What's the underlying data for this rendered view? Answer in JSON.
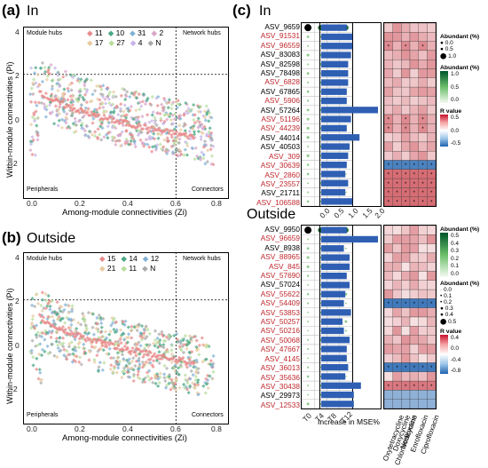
{
  "panel_a": {
    "label": "(a)",
    "title": "In",
    "ylabel": "Within-module connectivities (Pi)",
    "xlabel": "Among-module connectivities (Zi)",
    "corners": {
      "top_left": "Module hubs",
      "top_right": "Network hubs",
      "bottom_left": "Peripherals",
      "bottom_right": "Connectors"
    },
    "legend": [
      "11",
      "10",
      "31",
      "2",
      "17",
      "27",
      "4",
      "N"
    ],
    "xticks": [
      "0.0",
      "0.2",
      "0.4",
      "0.6",
      "0.8"
    ],
    "yticks": [
      "4",
      "2",
      "0",
      "-2"
    ]
  },
  "panel_b": {
    "label": "(b)",
    "title": "Outside",
    "ylabel": "Within-module connectivities (Pi)",
    "xlabel": "Among-module connectivities (Zi)",
    "corners": {
      "top_left": "Module hubs",
      "top_right": "Network hubs",
      "bottom_left": "Peripherals",
      "bottom_right": "Connectors"
    },
    "legend": [
      "15",
      "14",
      "12",
      "21",
      "11",
      "N"
    ],
    "xticks": [
      "0.0",
      "0.2",
      "0.4",
      "0.6",
      "0.8"
    ],
    "yticks": [
      "4",
      "2",
      "0",
      "-2"
    ]
  },
  "panel_c": {
    "label": "(c)",
    "title_in": "In",
    "title_out": "Outside",
    "timepoints": [
      "T0",
      "T4",
      "T8",
      "T12"
    ],
    "bar_axis_ticks": [
      "0.0",
      "0.5",
      "1.0",
      "1.5",
      "2.0"
    ],
    "bar_xlabel": "Increase in MSE%",
    "antibiotics": [
      "Oxytetracycline",
      "Chlortetracycline",
      "Doxycycline",
      "Norfloxacin",
      "Enrofloxacin",
      "Ciprofloxacin"
    ],
    "legend_in": {
      "size_title": "Abundant (%)",
      "size_values": [
        "0.0",
        "0.5",
        "1.0"
      ],
      "color_title": "Abundant (%)",
      "color_values": [
        "1.0",
        "0.5",
        "0.0"
      ],
      "r_title": "R value",
      "r_values": [
        "0.5",
        "0.0",
        "-0.5"
      ]
    },
    "legend_out": {
      "color_title": "Abundant (%)",
      "color_values": [
        "0.5",
        "0.4",
        "0.3",
        "0.2",
        "0.1",
        "0.0"
      ],
      "size_title": "Abundant (%)",
      "size_values": [
        "0.0",
        "0.1",
        "0.2",
        "0.3",
        "0.4",
        "0.5"
      ],
      "r_title": "R value",
      "r_values": [
        "0.4",
        "0.0",
        "-0.4",
        "-0.8"
      ]
    },
    "in_rows": [
      {
        "name": "ASV_9659",
        "color": "#000000",
        "value": 0.9
      },
      {
        "name": "ASV_91531",
        "color": "#c0272d",
        "value": 1.1
      },
      {
        "name": "ASV_96559",
        "color": "#c0272d",
        "value": 1.1
      },
      {
        "name": "ASV_83083",
        "color": "#000000",
        "value": 1.05
      },
      {
        "name": "ASV_82598",
        "color": "#000000",
        "value": 0.95
      },
      {
        "name": "ASV_78498",
        "color": "#000000",
        "value": 0.95
      },
      {
        "name": "ASV_6828",
        "color": "#c0272d",
        "value": 0.95
      },
      {
        "name": "ASV_67865",
        "color": "#000000",
        "value": 0.9
      },
      {
        "name": "ASV_5906",
        "color": "#c0272d",
        "value": 0.9
      },
      {
        "name": "ASV_57264",
        "color": "#000000",
        "value": 2.0
      },
      {
        "name": "ASV_51196",
        "color": "#c0272d",
        "value": 1.05
      },
      {
        "name": "ASV_44239",
        "color": "#c0272d",
        "value": 0.9
      },
      {
        "name": "ASV_44014",
        "color": "#000000",
        "value": 1.35
      },
      {
        "name": "ASV_40503",
        "color": "#000000",
        "value": 1.0
      },
      {
        "name": "ASV_309",
        "color": "#c0272d",
        "value": 0.95
      },
      {
        "name": "ASV_30639",
        "color": "#c0272d",
        "value": 0.9
      },
      {
        "name": "ASV_2860",
        "color": "#c0272d",
        "value": 0.85
      },
      {
        "name": "ASV_23557",
        "color": "#c0272d",
        "value": 0.95
      },
      {
        "name": "ASV_21711",
        "color": "#000000",
        "value": 0.85
      },
      {
        "name": "ASV_106588",
        "color": "#c0272d",
        "value": 1.1
      }
    ],
    "out_rows": [
      {
        "name": "ASV_9950",
        "color": "#000000",
        "value": 0.9
      },
      {
        "name": "ASV_96659",
        "color": "#c0272d",
        "value": 2.0
      },
      {
        "name": "ASV_8938",
        "color": "#000000",
        "value": 0.8
      },
      {
        "name": "ASV_88965",
        "color": "#c0272d",
        "value": 1.0
      },
      {
        "name": "ASV_845",
        "color": "#c0272d",
        "value": 1.0
      },
      {
        "name": "ASV_57690",
        "color": "#c0272d",
        "value": 0.9
      },
      {
        "name": "ASV_57024",
        "color": "#000000",
        "value": 1.0
      },
      {
        "name": "ASV_55622",
        "color": "#c0272d",
        "value": 0.85
      },
      {
        "name": "ASV_54409",
        "color": "#c0272d",
        "value": 0.8
      },
      {
        "name": "ASV_53853",
        "color": "#c0272d",
        "value": 1.05
      },
      {
        "name": "ASV_50257",
        "color": "#c0272d",
        "value": 0.75
      },
      {
        "name": "ASV_50216",
        "color": "#c0272d",
        "value": 0.8
      },
      {
        "name": "ASV_50068",
        "color": "#c0272d",
        "value": 1.0
      },
      {
        "name": "ASV_47667",
        "color": "#c0272d",
        "value": 0.9
      },
      {
        "name": "ASV_4145",
        "color": "#c0272d",
        "value": 0.9
      },
      {
        "name": "ASV_36013",
        "color": "#c0272d",
        "value": 0.95
      },
      {
        "name": "ASV_35636",
        "color": "#c0272d",
        "value": 0.85
      },
      {
        "name": "ASV_30438",
        "color": "#c0272d",
        "value": 1.4
      },
      {
        "name": "ASV_29973",
        "color": "#000000",
        "value": 1.15
      },
      {
        "name": "ASV_12533",
        "color": "#c0272d",
        "value": 1.15
      }
    ]
  }
}
